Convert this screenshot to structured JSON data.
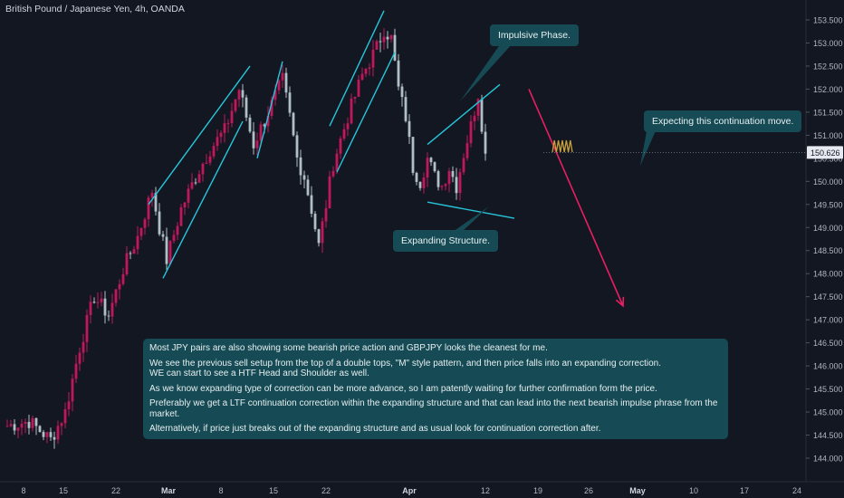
{
  "title": "British Pound / Japanese Yen, 4h, OANDA",
  "colors": {
    "background": "#131722",
    "bull": "#c2185b",
    "bear": "#b0bec5",
    "channel": "#26c6da",
    "projection": "#e91e63",
    "squiggle": "#c8a13a",
    "callout_bg": "#164b55",
    "price_tag_bg": "#e6e9ef"
  },
  "callouts": {
    "impulsive": "Impulsive Phase.",
    "expanding": "Expanding Structure.",
    "continuation": "Expecting this continuation move."
  },
  "note": {
    "paragraphs": [
      "Most JPY pairs are also showing some bearish price action and GBPJPY looks the cleanest for me.",
      "We see the previous sell setup from the top of a double tops, \"M\" style pattern, and then price falls into an expanding correction.\nWE can start to see a HTF Head and Shoulder as well.",
      "As we know expanding type of correction can be more advance, so I am patently waiting for further confirmation form the price.",
      "Preferably we get a LTF continuation correction within the expanding structure and that can lead into the next bearish impulse phrase from the market.",
      "Alternatively, if price just breaks out of the expanding structure and as usual look for continuation correction after."
    ]
  },
  "chart_data": {
    "type": "line",
    "title": "British Pound / Japanese Yen, 4h, OANDA",
    "xlabel": "",
    "ylabel": "",
    "ylim": [
      143.6,
      153.75
    ],
    "grid": false,
    "current_price": "150.626",
    "x_ticks": [
      "8",
      "15",
      "22",
      "Mar",
      "8",
      "15",
      "22",
      "Apr",
      "12",
      "19",
      "26",
      "May",
      "10",
      "17",
      "24"
    ],
    "y_ticks": [
      "153.500",
      "153.000",
      "152.500",
      "152.000",
      "151.500",
      "151.000",
      "150.500",
      "150.000",
      "149.500",
      "149.000",
      "148.500",
      "148.000",
      "147.500",
      "147.000",
      "146.500",
      "146.000",
      "145.500",
      "145.000",
      "144.500",
      "144.000"
    ],
    "price_path": [
      {
        "x": 0,
        "y": 144.7
      },
      {
        "x": 3,
        "y": 144.8
      },
      {
        "x": 6,
        "y": 144.4
      },
      {
        "x": 8,
        "y": 145.0
      },
      {
        "x": 10,
        "y": 146.4
      },
      {
        "x": 12,
        "y": 147.5
      },
      {
        "x": 14,
        "y": 147.1
      },
      {
        "x": 16,
        "y": 148.1
      },
      {
        "x": 18,
        "y": 148.8
      },
      {
        "x": 20,
        "y": 149.8
      },
      {
        "x": 21,
        "y": 149.0
      },
      {
        "x": 22,
        "y": 148.3
      },
      {
        "x": 24,
        "y": 149.4
      },
      {
        "x": 26,
        "y": 150.1
      },
      {
        "x": 28,
        "y": 150.7
      },
      {
        "x": 30,
        "y": 151.1
      },
      {
        "x": 32,
        "y": 152.0
      },
      {
        "x": 33,
        "y": 151.4
      },
      {
        "x": 34,
        "y": 150.8
      },
      {
        "x": 36,
        "y": 151.5
      },
      {
        "x": 38,
        "y": 152.2
      },
      {
        "x": 39,
        "y": 151.4
      },
      {
        "x": 40,
        "y": 150.5
      },
      {
        "x": 41,
        "y": 150.1
      },
      {
        "x": 42,
        "y": 149.4
      },
      {
        "x": 43,
        "y": 148.6
      },
      {
        "x": 44,
        "y": 149.5
      },
      {
        "x": 45,
        "y": 150.4
      },
      {
        "x": 47,
        "y": 151.4
      },
      {
        "x": 49,
        "y": 152.3
      },
      {
        "x": 51,
        "y": 152.9
      },
      {
        "x": 52,
        "y": 153.3
      },
      {
        "x": 53,
        "y": 153.1
      },
      {
        "x": 54,
        "y": 152.0
      },
      {
        "x": 55,
        "y": 151.4
      },
      {
        "x": 56,
        "y": 150.3
      },
      {
        "x": 57,
        "y": 150.0
      },
      {
        "x": 58,
        "y": 150.5
      },
      {
        "x": 59,
        "y": 150.1
      },
      {
        "x": 60,
        "y": 149.9
      },
      {
        "x": 61,
        "y": 150.3
      },
      {
        "x": 62,
        "y": 149.9
      },
      {
        "x": 63,
        "y": 150.6
      },
      {
        "x": 64,
        "y": 151.2
      },
      {
        "x": 65,
        "y": 151.9
      },
      {
        "x": 66,
        "y": 150.6
      }
    ],
    "series": [
      {
        "values": [
          {
            "x": 19.5,
            "y": 149.5
          },
          {
            "x": 33.5,
            "y": 152.5
          },
          {
            "x": 21.5,
            "y": 147.9
          },
          {
            "x": 32.5,
            "y": 151.3
          },
          {
            "x": 34.5,
            "y": 150.5
          },
          {
            "x": 38.0,
            "y": 152.6
          },
          {
            "x": 44.5,
            "y": 151.2
          },
          {
            "x": 52.0,
            "y": 153.7
          },
          {
            "x": 45.5,
            "y": 150.2
          },
          {
            "x": 53.5,
            "y": 152.8
          },
          {
            "x": 58.0,
            "y": 150.8
          },
          {
            "x": 68.0,
            "y": 152.1
          },
          {
            "x": 58.0,
            "y": 149.55
          },
          {
            "x": 70.0,
            "y": 149.2
          }
        ]
      },
      {
        "values": [
          {
            "x": 72,
            "y": 152.0
          },
          {
            "x": 85,
            "y": 147.3
          }
        ]
      }
    ]
  }
}
